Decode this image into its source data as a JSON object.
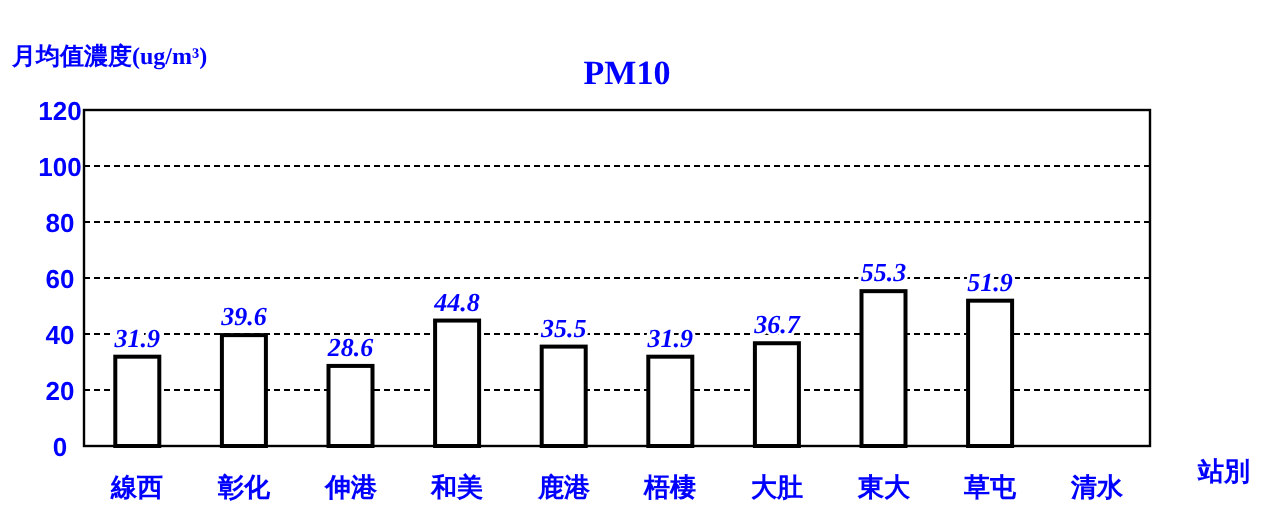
{
  "chart_data": {
    "type": "bar",
    "title": "PM10",
    "ylabel": "月均值濃度(ug/m³)",
    "xlabel": "站別",
    "categories": [
      "線西",
      "彰化",
      "伸港",
      "和美",
      "鹿港",
      "梧棲",
      "大肚",
      "東大",
      "草屯",
      "清水"
    ],
    "values": [
      31.9,
      39.6,
      28.6,
      44.8,
      35.5,
      31.9,
      36.7,
      55.3,
      51.9,
      null
    ],
    "color": "#ffffff",
    "data_labels": true,
    "grid": "y",
    "ylim": [
      0,
      120
    ],
    "yticks": [
      0,
      20,
      40,
      60,
      80,
      100,
      120
    ]
  }
}
